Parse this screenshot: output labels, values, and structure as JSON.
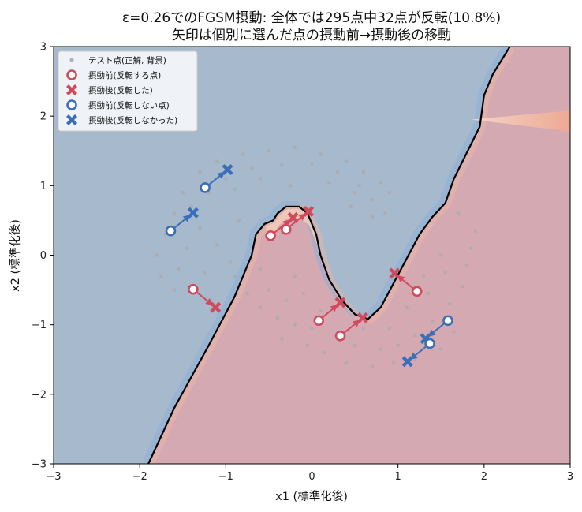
{
  "chart_data": {
    "type": "scatter",
    "title_line1": "ε=0.26でのFGSM摂動: 全体では295点中32点が反転(10.8%)",
    "title_line2": "矢印は個別に選んだ点の摂動前→摂動後の移動",
    "xlabel": "x1 (標準化後)",
    "ylabel": "x2 (標準化後)",
    "xlim": [
      -3,
      3
    ],
    "ylim": [
      -3,
      3
    ],
    "xticks": [
      "−3",
      "−2",
      "−1",
      "0",
      "1",
      "2",
      "3"
    ],
    "yticks": [
      "−3",
      "−2",
      "−1",
      "0",
      "1",
      "2",
      "3"
    ],
    "grid": false,
    "legend_position": "top-left",
    "colors": {
      "region_blue": "#a7b9cd",
      "region_red": "#d4a9b2",
      "flipped": "#d04a5c",
      "not_flipped": "#3a6fb8",
      "test_points": "#a9a9a9",
      "boundary": "#000000"
    },
    "legend": [
      {
        "label": "テスト点(正解, 背景)",
        "marker": "dot",
        "color": "#b3b3b3"
      },
      {
        "label": "摂動前(反転する点)",
        "marker": "ring",
        "color": "#d04a5c"
      },
      {
        "label": "摂動後(反転した)",
        "marker": "x",
        "color": "#d04a5c"
      },
      {
        "label": "摂動前(反転しない点)",
        "marker": "ring",
        "color": "#3a6fb8"
      },
      {
        "label": "摂動後(反転しなかった)",
        "marker": "x",
        "color": "#3a6fb8"
      }
    ],
    "boundary": [
      [
        -1.9,
        -3.0
      ],
      [
        -1.6,
        -2.2
      ],
      [
        -1.2,
        -1.3
      ],
      [
        -0.9,
        -0.6
      ],
      [
        -0.7,
        0.0
      ],
      [
        -0.65,
        0.3
      ],
      [
        -0.55,
        0.45
      ],
      [
        -0.45,
        0.5
      ],
      [
        -0.4,
        0.6
      ],
      [
        -0.3,
        0.7
      ],
      [
        -0.15,
        0.7
      ],
      [
        -0.05,
        0.6
      ],
      [
        0.05,
        0.3
      ],
      [
        0.1,
        0.0
      ],
      [
        0.2,
        -0.35
      ],
      [
        0.35,
        -0.65
      ],
      [
        0.5,
        -0.85
      ],
      [
        0.65,
        -0.92
      ],
      [
        0.8,
        -0.75
      ],
      [
        0.95,
        -0.4
      ],
      [
        1.1,
        -0.05
      ],
      [
        1.25,
        0.3
      ],
      [
        1.4,
        0.55
      ],
      [
        1.55,
        0.75
      ],
      [
        1.65,
        1.1
      ],
      [
        1.75,
        1.35
      ],
      [
        1.85,
        1.6
      ],
      [
        1.95,
        1.85
      ],
      [
        2.0,
        2.3
      ],
      [
        2.1,
        2.6
      ],
      [
        2.3,
        3.0
      ]
    ],
    "background_points": [
      [
        -1.3,
        1.2
      ],
      [
        -1.1,
        1.35
      ],
      [
        -0.8,
        1.45
      ],
      [
        -0.5,
        1.5
      ],
      [
        -0.2,
        1.55
      ],
      [
        0.1,
        1.45
      ],
      [
        0.4,
        1.35
      ],
      [
        0.6,
        1.2
      ],
      [
        0.8,
        1.05
      ],
      [
        0.9,
        0.9
      ],
      [
        -1.0,
        1.1
      ],
      [
        -0.7,
        1.25
      ],
      [
        -0.35,
        1.3
      ],
      [
        0.0,
        1.3
      ],
      [
        0.3,
        1.2
      ],
      [
        0.55,
        1.0
      ],
      [
        0.7,
        0.8
      ],
      [
        0.85,
        0.6
      ],
      [
        -1.5,
        0.9
      ],
      [
        -1.6,
        0.6
      ],
      [
        -1.7,
        0.3
      ],
      [
        -1.8,
        0.0
      ],
      [
        -1.75,
        -0.3
      ],
      [
        -1.6,
        -0.5
      ],
      [
        -1.4,
        0.7
      ],
      [
        -1.2,
        0.9
      ],
      [
        -0.9,
        0.95
      ],
      [
        -0.6,
        1.1
      ],
      [
        0.2,
        1.05
      ],
      [
        0.5,
        0.9
      ],
      [
        -1.3,
        0.4
      ],
      [
        -1.45,
        0.1
      ],
      [
        -1.55,
        -0.2
      ],
      [
        -1.25,
        -0.25
      ],
      [
        -1.1,
        0.15
      ],
      [
        -0.85,
        0.5
      ],
      [
        -0.95,
        -0.1
      ],
      [
        0.7,
        0.55
      ],
      [
        0.45,
        0.7
      ],
      [
        -0.25,
        1.0
      ],
      [
        -0.9,
        -0.3
      ],
      [
        -0.75,
        -0.55
      ],
      [
        -0.6,
        -0.75
      ],
      [
        -0.4,
        -0.9
      ],
      [
        -0.2,
        -1.0
      ],
      [
        0.0,
        -1.05
      ],
      [
        0.3,
        -1.2
      ],
      [
        0.5,
        -1.3
      ],
      [
        0.8,
        -1.35
      ],
      [
        1.0,
        -1.3
      ],
      [
        1.2,
        -1.15
      ],
      [
        1.4,
        -0.95
      ],
      [
        1.6,
        -0.7
      ],
      [
        1.75,
        -0.45
      ],
      [
        1.8,
        -0.15
      ],
      [
        1.85,
        0.1
      ],
      [
        1.9,
        0.35
      ],
      [
        1.7,
        0.6
      ],
      [
        1.5,
        0.0
      ],
      [
        1.3,
        -0.3
      ],
      [
        -0.5,
        -0.5
      ],
      [
        -0.3,
        -0.65
      ],
      [
        -0.1,
        -0.55
      ],
      [
        0.1,
        -0.8
      ],
      [
        0.15,
        -1.4
      ],
      [
        0.4,
        -1.55
      ],
      [
        0.7,
        -1.6
      ],
      [
        0.95,
        -1.55
      ],
      [
        1.2,
        -1.5
      ],
      [
        1.5,
        -1.35
      ],
      [
        1.65,
        -1.1
      ],
      [
        -0.05,
        -1.3
      ],
      [
        -0.35,
        -1.2
      ],
      [
        0.6,
        -1.05
      ],
      [
        0.9,
        -1.05
      ],
      [
        1.1,
        -0.75
      ],
      [
        1.35,
        -0.55
      ],
      [
        1.55,
        -0.25
      ],
      [
        -0.6,
        -0.2
      ],
      [
        -0.2,
        -0.3
      ]
    ],
    "arrows": [
      {
        "flipped": true,
        "before": [
          1.22,
          -0.52
        ],
        "after": [
          0.96,
          -0.26
        ]
      },
      {
        "flipped": true,
        "before": [
          0.08,
          -0.94
        ],
        "after": [
          0.33,
          -0.68
        ]
      },
      {
        "flipped": true,
        "before": [
          0.33,
          -1.16
        ],
        "after": [
          0.59,
          -0.9
        ]
      },
      {
        "flipped": true,
        "before": [
          -1.38,
          -0.49
        ],
        "after": [
          -1.12,
          -0.75
        ]
      },
      {
        "flipped": true,
        "before": [
          -0.48,
          0.28
        ],
        "after": [
          -0.22,
          0.54
        ]
      },
      {
        "flipped": true,
        "before": [
          -0.3,
          0.37
        ],
        "after": [
          -0.04,
          0.63
        ]
      },
      {
        "flipped": false,
        "before": [
          -1.64,
          0.35
        ],
        "after": [
          -1.38,
          0.61
        ]
      },
      {
        "flipped": false,
        "before": [
          -1.24,
          0.97
        ],
        "after": [
          -0.98,
          1.23
        ]
      },
      {
        "flipped": false,
        "before": [
          1.58,
          -0.94
        ],
        "after": [
          1.32,
          -1.2
        ]
      },
      {
        "flipped": false,
        "before": [
          1.37,
          -1.27
        ],
        "after": [
          1.11,
          -1.53
        ]
      }
    ]
  }
}
